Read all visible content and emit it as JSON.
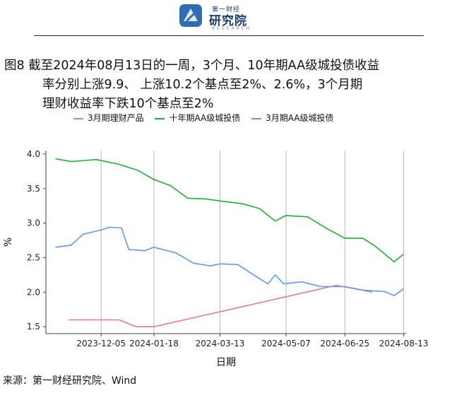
{
  "header": {
    "brand_small": "第一财经",
    "brand_main": "研究院",
    "brand_en": "RESEARCH"
  },
  "figure": {
    "title_line1": "图8  截至2024年08月13日的一周，3个月、10年期AA级城投债收益",
    "title_line2": "率分别上涨9.9、 上涨10.2个基点至2%、2.6%，3个月期",
    "title_line3": "理财收益率下跌10个基点至2%",
    "source": "来源：第一财经研究院、Wind"
  },
  "chart_data": {
    "type": "line",
    "xlabel": "日期",
    "ylabel": "%",
    "x_ticks": [
      "2023-12-05",
      "2024-01-18",
      "2024-03-13",
      "2024-05-07",
      "2024-06-25",
      "2024-08-13"
    ],
    "xlim": [
      "2023-10-20",
      "2024-08-15"
    ],
    "ylim": [
      1.4,
      4.05
    ],
    "y_ticks": [
      1.5,
      2.0,
      2.5,
      3.0,
      3.5,
      4.0
    ],
    "grid": "vertical",
    "legend_position": "top",
    "series": [
      {
        "name": "3月期理财产品",
        "color": "#f07a78",
        "points": [
          [
            "2023-11-08",
            1.6
          ],
          [
            "2023-12-20",
            1.6
          ],
          [
            "2024-01-03",
            1.5
          ],
          [
            "2024-01-18",
            1.5
          ],
          [
            "2024-06-18",
            2.1
          ],
          [
            "2024-07-18",
            2.0
          ]
        ]
      },
      {
        "name": "十年期AA级城投债",
        "color": "#1db32c",
        "points": [
          [
            "2023-10-28",
            3.93
          ],
          [
            "2023-11-10",
            3.89
          ],
          [
            "2023-12-01",
            3.92
          ],
          [
            "2023-12-20",
            3.85
          ],
          [
            "2024-01-05",
            3.76
          ],
          [
            "2024-01-18",
            3.63
          ],
          [
            "2024-02-01",
            3.54
          ],
          [
            "2024-02-15",
            3.36
          ],
          [
            "2024-03-01",
            3.35
          ],
          [
            "2024-03-13",
            3.32
          ],
          [
            "2024-04-01",
            3.28
          ],
          [
            "2024-04-15",
            3.21
          ],
          [
            "2024-04-28",
            3.03
          ],
          [
            "2024-05-07",
            3.11
          ],
          [
            "2024-05-25",
            3.09
          ],
          [
            "2024-06-10",
            2.92
          ],
          [
            "2024-06-25",
            2.78
          ],
          [
            "2024-07-10",
            2.78
          ],
          [
            "2024-07-20",
            2.67
          ],
          [
            "2024-08-05",
            2.44
          ],
          [
            "2024-08-13",
            2.55
          ]
        ]
      },
      {
        "name": "3月期AA级城投债",
        "color": "#5b9bf5",
        "points": [
          [
            "2023-10-28",
            2.65
          ],
          [
            "2023-11-10",
            2.68
          ],
          [
            "2023-11-20",
            2.84
          ],
          [
            "2023-12-05",
            2.9
          ],
          [
            "2023-12-12",
            2.94
          ],
          [
            "2023-12-22",
            2.93
          ],
          [
            "2023-12-28",
            2.62
          ],
          [
            "2024-01-10",
            2.6
          ],
          [
            "2024-01-18",
            2.65
          ],
          [
            "2024-02-05",
            2.57
          ],
          [
            "2024-02-20",
            2.42
          ],
          [
            "2024-03-05",
            2.38
          ],
          [
            "2024-03-13",
            2.41
          ],
          [
            "2024-03-28",
            2.4
          ],
          [
            "2024-04-10",
            2.25
          ],
          [
            "2024-04-22",
            2.12
          ],
          [
            "2024-04-28",
            2.25
          ],
          [
            "2024-05-05",
            2.12
          ],
          [
            "2024-05-20",
            2.15
          ],
          [
            "2024-06-05",
            2.08
          ],
          [
            "2024-06-25",
            2.08
          ],
          [
            "2024-07-10",
            2.03
          ],
          [
            "2024-07-28",
            2.01
          ],
          [
            "2024-08-05",
            1.95
          ],
          [
            "2024-08-13",
            2.05
          ]
        ]
      }
    ]
  }
}
